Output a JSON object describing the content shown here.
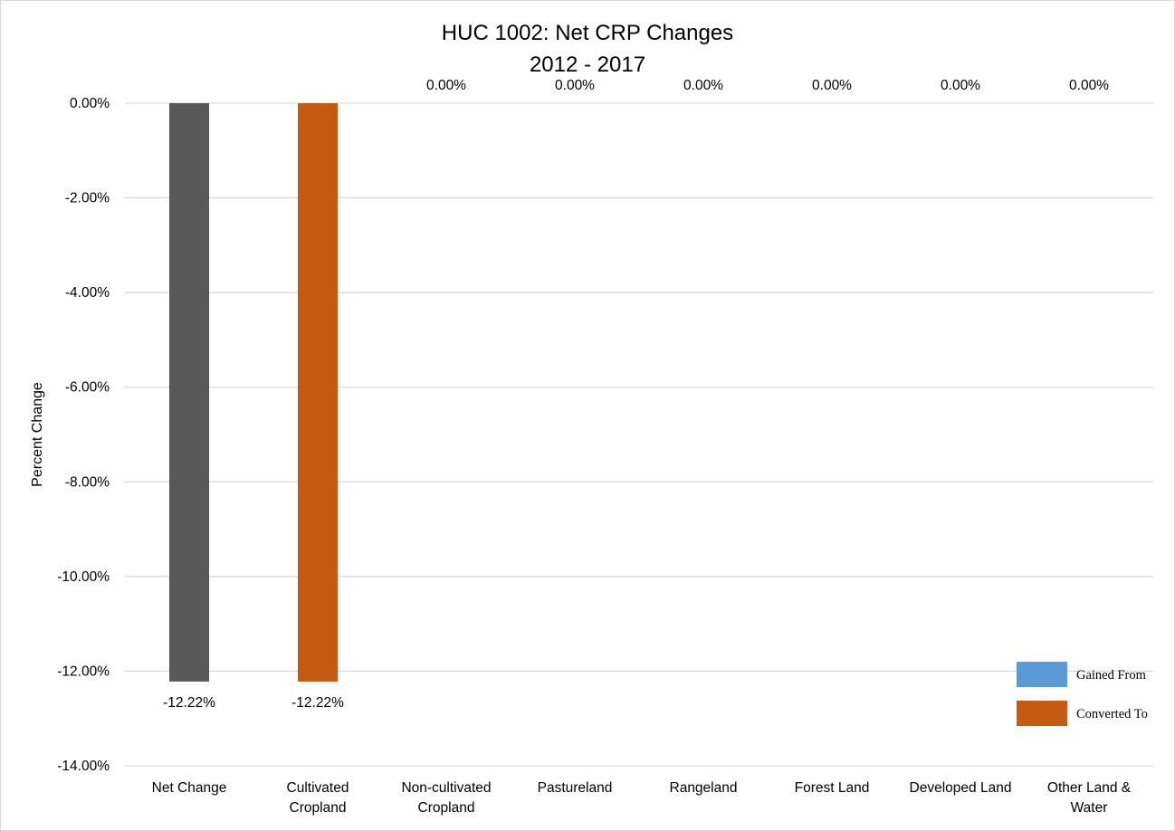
{
  "chart_data": {
    "type": "bar",
    "title": [
      "HUC 1002: Net CRP Changes",
      "2012 - 2017"
    ],
    "ylabel": "Percent Change",
    "xlabel": "",
    "ylim": [
      -14,
      0
    ],
    "yticks": [
      0,
      -2,
      -4,
      -6,
      -8,
      -10,
      -12,
      -14
    ],
    "ytick_labels": [
      "0.00%",
      "-2.00%",
      "-4.00%",
      "-6.00%",
      "-8.00%",
      "-10.00%",
      "-12.00%",
      "-14.00%"
    ],
    "grid": true,
    "legend_position": "bottom-right",
    "categories": [
      [
        "Net Change"
      ],
      [
        "Cultivated",
        "Cropland"
      ],
      [
        "Non-cultivated",
        "Cropland"
      ],
      [
        "Pastureland"
      ],
      [
        "Rangeland"
      ],
      [
        "Forest Land"
      ],
      [
        "Developed Land"
      ],
      [
        "Other Land &",
        "Water"
      ]
    ],
    "values": [
      -12.22,
      -12.22,
      0,
      0,
      0,
      0,
      0,
      0
    ],
    "data_labels": [
      "-12.22%",
      "-12.22%",
      "0.00%",
      "0.00%",
      "0.00%",
      "0.00%",
      "0.00%",
      "0.00%"
    ],
    "bar_colors": [
      "#595959",
      "#c55a11",
      "#c55a11",
      "#c55a11",
      "#c55a11",
      "#c55a11",
      "#c55a11",
      "#c55a11"
    ],
    "legend": [
      {
        "name": "Gained From",
        "color": "#5b9bd5"
      },
      {
        "name": "Converted To",
        "color": "#c55a11"
      }
    ]
  }
}
